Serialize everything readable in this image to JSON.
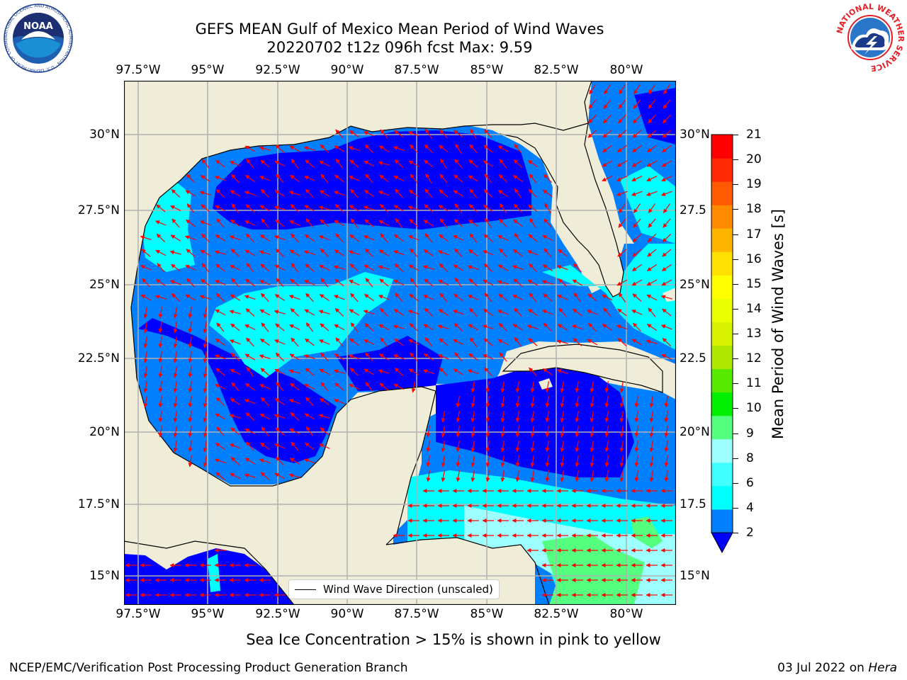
{
  "header": {
    "title": "GEFS MEAN Gulf of Mexico Mean Period of Wind Waves",
    "subtitle": "20220702 t12z 096h fcst   Max: 9.59"
  },
  "map": {
    "lon_labels": [
      "97.5°W",
      "95°W",
      "92.5°W",
      "90°W",
      "87.5°W",
      "85°W",
      "82.5°W",
      "80°W"
    ],
    "lat_labels_left": [
      "30°N",
      "27.5°N",
      "25°N",
      "22.5°N",
      "20°N",
      "17.5°N",
      "15°N"
    ],
    "lat_labels_right": [
      "30°N",
      "27.5",
      "25°N",
      "22.5",
      "20°N",
      "17.5",
      "15°N"
    ],
    "legend_text": "Wind Wave Direction (unscaled)",
    "colors": {
      "land": "#efedd8",
      "ocean_low": "#0000ff",
      "ocean_mid": "#0080ff",
      "ocean_high": "#00ffff",
      "arrow": "#ff0000"
    }
  },
  "colorbar": {
    "label": "Mean Period of Wind Waves [s]",
    "ticks": [
      "21",
      "20",
      "19",
      "18",
      "17",
      "16",
      "15",
      "14",
      "13",
      "12",
      "11",
      "10",
      "9",
      "8",
      "6",
      "4",
      "2"
    ],
    "colors": [
      "#0080ff",
      "#00ffff",
      "#40ffff",
      "#9effff",
      "#55ff80",
      "#00f000",
      "#55ea00",
      "#aee800",
      "#d8f200",
      "#eaff00",
      "#ffff00",
      "#ffe000",
      "#ffb400",
      "#ff8a00",
      "#ff5a00",
      "#ff2a00",
      "#ff0000"
    ]
  },
  "footer": {
    "note": "Sea Ice Concentration > 15% is shown in pink to yellow",
    "credit_left": "NCEP/EMC/Verification Post Processing Product Generation Branch",
    "credit_right_prefix": "03 Jul 2022 on ",
    "credit_right_host": "Hera"
  },
  "logos": {
    "noaa_text": "NOAA",
    "noaa_ring": "NATIONAL OCEANIC AND ATMOSPHERIC ADMINISTRATION · U.S. DEPARTMENT OF COMMERCE",
    "nws_ring": "NATIONAL WEATHER SERVICE"
  }
}
